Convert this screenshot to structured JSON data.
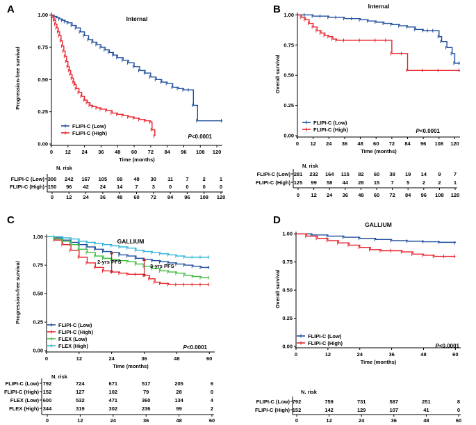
{
  "chart_data": [
    {
      "panel": "A",
      "type": "line",
      "title": "Internal",
      "xlabel": "Time (months)",
      "ylabel": "Progression-free survival",
      "xlim": [
        0,
        124
      ],
      "ylim": [
        0,
        1.02
      ],
      "xticks": [
        0,
        12,
        24,
        36,
        48,
        60,
        72,
        84,
        96,
        108,
        120
      ],
      "yticks": [
        "0.00",
        "0.25",
        "0.50",
        "0.75",
        "1.00"
      ],
      "pvalue_prefix": "P",
      "pvalue_rest": "<0.0001",
      "legend_position": "bottom-left",
      "series": [
        {
          "name": "FLIPI-C (Low)",
          "color": "#1f4e9c",
          "x": [
            0,
            2,
            4,
            6,
            8,
            10,
            12,
            15,
            18,
            21,
            24,
            27,
            30,
            33,
            36,
            39,
            42,
            45,
            48,
            52,
            56,
            60,
            64,
            68,
            72,
            76,
            80,
            84,
            88,
            92,
            96,
            100,
            103,
            106,
            124
          ],
          "y": [
            1.0,
            0.99,
            0.98,
            0.97,
            0.96,
            0.95,
            0.94,
            0.92,
            0.9,
            0.87,
            0.84,
            0.81,
            0.79,
            0.77,
            0.75,
            0.73,
            0.71,
            0.69,
            0.67,
            0.65,
            0.63,
            0.6,
            0.57,
            0.55,
            0.52,
            0.5,
            0.48,
            0.47,
            0.44,
            0.43,
            0.42,
            0.42,
            0.3,
            0.18,
            0.18
          ]
        },
        {
          "name": "FLIPI-C (High)",
          "color": "#e8242b",
          "x": [
            0,
            1,
            2,
            3,
            4,
            5,
            6,
            7,
            8,
            9,
            10,
            11,
            12,
            13,
            14,
            15,
            16,
            17,
            18,
            20,
            22,
            24,
            26,
            28,
            30,
            33,
            36,
            40,
            44,
            48,
            52,
            56,
            60,
            64,
            68,
            72,
            73,
            75
          ],
          "y": [
            1.0,
            0.98,
            0.96,
            0.93,
            0.9,
            0.87,
            0.84,
            0.8,
            0.76,
            0.72,
            0.68,
            0.64,
            0.6,
            0.57,
            0.54,
            0.51,
            0.48,
            0.46,
            0.43,
            0.4,
            0.37,
            0.34,
            0.32,
            0.3,
            0.29,
            0.28,
            0.27,
            0.26,
            0.24,
            0.23,
            0.22,
            0.21,
            0.2,
            0.19,
            0.18,
            0.17,
            0.11,
            0.06
          ]
        }
      ],
      "risk_table": {
        "header": "N. risk",
        "rows": [
          {
            "label": "FLIPI-C (Low)",
            "values": [
              "300",
              "242",
              "167",
              "105",
              "69",
              "48",
              "30",
              "11",
              "7",
              "2",
              "1"
            ]
          },
          {
            "label": "FLIPI-C (High)",
            "values": [
              "150",
              "96",
              "42",
              "24",
              "14",
              "7",
              "3",
              "0",
              "0",
              "0",
              "0"
            ]
          }
        ],
        "xticks": [
          "0",
          "12",
          "24",
          "36",
          "48",
          "60",
          "72",
          "84",
          "96",
          "108",
          "120"
        ]
      }
    },
    {
      "panel": "B",
      "type": "line",
      "title": "Internal",
      "xlabel": "Time (months)",
      "ylabel": "Overall survival",
      "xlim": [
        0,
        124
      ],
      "ylim": [
        0,
        1.02
      ],
      "xticks": [
        0,
        12,
        24,
        36,
        48,
        60,
        72,
        84,
        96,
        108,
        120
      ],
      "yticks": [
        "0.00",
        "0.25",
        "0.50",
        "0.75",
        "1.00"
      ],
      "pvalue_prefix": "P",
      "pvalue_rest": "<0.0001",
      "legend_position": "bottom-left",
      "series": [
        {
          "name": "FLIPI-C (Low)",
          "color": "#1f4e9c",
          "x": [
            0,
            6,
            12,
            18,
            24,
            30,
            36,
            42,
            48,
            54,
            60,
            66,
            72,
            78,
            84,
            90,
            96,
            100,
            104,
            108,
            110,
            114,
            118,
            120,
            124
          ],
          "y": [
            1.0,
            1.0,
            0.99,
            0.99,
            0.98,
            0.98,
            0.97,
            0.97,
            0.96,
            0.95,
            0.94,
            0.93,
            0.92,
            0.91,
            0.9,
            0.88,
            0.87,
            0.87,
            0.87,
            0.82,
            0.78,
            0.73,
            0.68,
            0.6,
            0.6
          ]
        },
        {
          "name": "FLIPI-C (High)",
          "color": "#e8242b",
          "x": [
            0,
            3,
            6,
            9,
            12,
            15,
            18,
            21,
            24,
            27,
            30,
            36,
            48,
            60,
            68,
            72,
            80,
            84,
            96,
            108,
            124
          ],
          "y": [
            1.0,
            0.98,
            0.96,
            0.93,
            0.9,
            0.87,
            0.85,
            0.83,
            0.82,
            0.8,
            0.79,
            0.79,
            0.79,
            0.79,
            0.79,
            0.68,
            0.68,
            0.54,
            0.54,
            0.54,
            0.54
          ]
        }
      ],
      "risk_table": {
        "header": "N. risk",
        "rows": [
          {
            "label": "FLIPI-C (Low)",
            "values": [
              "281",
              "232",
              "164",
              "115",
              "82",
              "60",
              "38",
              "19",
              "14",
              "9",
              "7"
            ]
          },
          {
            "label": "FLIPI-C (High)",
            "values": [
              "125",
              "99",
              "58",
              "44",
              "28",
              "15",
              "7",
              "5",
              "2",
              "2",
              "1"
            ]
          }
        ],
        "xticks": [
          "0",
          "12",
          "24",
          "36",
          "48",
          "60",
          "72",
          "84",
          "96",
          "108",
          "120"
        ]
      }
    },
    {
      "panel": "C",
      "type": "line",
      "title": "GALLIUM",
      "xlabel": "Time (months)",
      "ylabel": "Progression-free survival",
      "xlim": [
        0,
        62
      ],
      "ylim": [
        0,
        1.02
      ],
      "xticks": [
        0,
        12,
        24,
        36,
        48,
        60
      ],
      "yticks": [
        "0.00",
        "0.25",
        "0.50",
        "0.75",
        "1.00"
      ],
      "pvalue_prefix": "P",
      "pvalue_rest": "<0.0001",
      "legend_position": "bottom-left",
      "annotations": [
        "2-yrs PFS",
        "3-yrs PFS"
      ],
      "series": [
        {
          "name": "FLIPI-C (Low)",
          "color": "#1f4e9c",
          "x": [
            0,
            3,
            6,
            9,
            12,
            15,
            18,
            21,
            24,
            27,
            30,
            33,
            36,
            39,
            42,
            45,
            48,
            51,
            54,
            57,
            60
          ],
          "y": [
            1.0,
            0.99,
            0.97,
            0.95,
            0.93,
            0.91,
            0.89,
            0.87,
            0.86,
            0.84,
            0.83,
            0.81,
            0.8,
            0.79,
            0.78,
            0.77,
            0.76,
            0.75,
            0.74,
            0.73,
            0.73
          ]
        },
        {
          "name": "FLIPI-C (High)",
          "color": "#e8242b",
          "x": [
            0,
            3,
            6,
            9,
            12,
            15,
            18,
            21,
            24,
            27,
            30,
            33,
            36,
            38,
            40,
            42,
            45,
            48,
            51,
            54,
            57,
            60
          ],
          "y": [
            1.0,
            0.97,
            0.93,
            0.88,
            0.82,
            0.77,
            0.73,
            0.7,
            0.69,
            0.68,
            0.67,
            0.67,
            0.66,
            0.63,
            0.6,
            0.59,
            0.58,
            0.58,
            0.58,
            0.58,
            0.58,
            0.58
          ]
        },
        {
          "name": "FLEX (Low)",
          "color": "#3ebd3e",
          "x": [
            0,
            3,
            6,
            9,
            12,
            15,
            18,
            21,
            24,
            27,
            30,
            33,
            36,
            39,
            42,
            45,
            48,
            51,
            54,
            57,
            60
          ],
          "y": [
            1.0,
            0.98,
            0.96,
            0.93,
            0.89,
            0.86,
            0.83,
            0.81,
            0.8,
            0.79,
            0.78,
            0.76,
            0.74,
            0.72,
            0.7,
            0.69,
            0.68,
            0.66,
            0.65,
            0.64,
            0.64
          ]
        },
        {
          "name": "FLEX (High)",
          "color": "#2fb5d8",
          "x": [
            0,
            3,
            6,
            9,
            12,
            15,
            18,
            21,
            24,
            27,
            30,
            33,
            36,
            39,
            42,
            45,
            48,
            51,
            54,
            57,
            60
          ],
          "y": [
            1.0,
            1.0,
            0.99,
            0.98,
            0.96,
            0.95,
            0.94,
            0.93,
            0.92,
            0.91,
            0.9,
            0.88,
            0.87,
            0.86,
            0.85,
            0.84,
            0.83,
            0.82,
            0.82,
            0.82,
            0.82
          ]
        }
      ],
      "risk_table": {
        "header": "N. risk",
        "rows": [
          {
            "label": "FLIPI-C (Low)",
            "values": [
              "792",
              "724",
              "671",
              "517",
              "205",
              "6"
            ]
          },
          {
            "label": "FLIPI-C (High)",
            "values": [
              "152",
              "127",
              "102",
              "79",
              "28",
              "0"
            ]
          },
          {
            "label": "FLEX (Low)",
            "values": [
              "600",
              "532",
              "471",
              "360",
              "134",
              "4"
            ]
          },
          {
            "label": "FLEX (High)",
            "values": [
              "344",
              "319",
              "302",
              "236",
              "99",
              "2"
            ]
          }
        ],
        "xticks": [
          "0",
          "12",
          "24",
          "36",
          "48",
          "60"
        ]
      }
    },
    {
      "panel": "D",
      "type": "line",
      "title": "GALLIUM",
      "xlabel": "Time (months)",
      "ylabel": "Overall survival",
      "xlim": [
        0,
        62
      ],
      "ylim": [
        0,
        1.02
      ],
      "xticks": [
        0,
        12,
        24,
        36,
        48,
        60
      ],
      "yticks": [
        "0.00",
        "0.25",
        "0.50",
        "0.75",
        "1.00"
      ],
      "pvalue_prefix": "P",
      "pvalue_rest": "<0.0001",
      "legend_position": "bottom-left",
      "series": [
        {
          "name": "FLIPI-C (Low)",
          "color": "#1f4e9c",
          "x": [
            0,
            6,
            12,
            18,
            24,
            30,
            36,
            42,
            48,
            54,
            60
          ],
          "y": [
            1.0,
            0.99,
            0.98,
            0.97,
            0.96,
            0.95,
            0.94,
            0.935,
            0.93,
            0.925,
            0.92
          ]
        },
        {
          "name": "FLIPI-C (High)",
          "color": "#e8242b",
          "x": [
            0,
            4,
            8,
            12,
            16,
            20,
            24,
            28,
            32,
            36,
            40,
            44,
            48,
            52,
            56,
            60
          ],
          "y": [
            1.0,
            0.98,
            0.96,
            0.94,
            0.92,
            0.9,
            0.88,
            0.86,
            0.85,
            0.85,
            0.84,
            0.82,
            0.81,
            0.8,
            0.8,
            0.8
          ]
        }
      ],
      "risk_table": {
        "header": "N. risk",
        "rows": [
          {
            "label": "FLIPI-C (Low)",
            "values": [
              "792",
              "759",
              "731",
              "587",
              "251",
              "8"
            ]
          },
          {
            "label": "FLIPI-C (High)",
            "values": [
              "152",
              "142",
              "129",
              "107",
              "41",
              "0"
            ]
          }
        ],
        "xticks": [
          "0",
          "12",
          "24",
          "36",
          "48",
          "60"
        ]
      }
    }
  ]
}
